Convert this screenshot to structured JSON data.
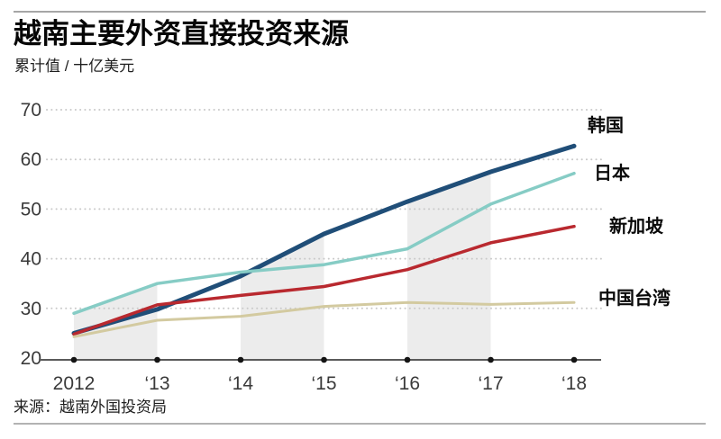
{
  "header": {
    "title": "越南主要外资直接投资来源",
    "subtitle": "累计值 / 十亿美元"
  },
  "footer": {
    "source": "来源：越南外国投资局"
  },
  "chart_data": {
    "type": "line",
    "title": "越南主要外资直接投资来源",
    "ylabel": "累计值 / 十亿美元",
    "categories": [
      "2012",
      "‘13",
      "‘14",
      "‘15",
      "‘16",
      "‘17",
      "‘18"
    ],
    "series": [
      {
        "id": "korea",
        "name": "韩国",
        "color": "#204e78",
        "line_width": 5,
        "values": [
          25.0,
          29.8,
          36.5,
          45.0,
          51.5,
          57.5,
          62.7
        ]
      },
      {
        "id": "japan",
        "name": "日本",
        "color": "#86ccc5",
        "line_width": 3.5,
        "values": [
          29.0,
          35.0,
          37.3,
          38.8,
          42.0,
          51.0,
          57.2
        ]
      },
      {
        "id": "singapore",
        "name": "新加坡",
        "color": "#b9292f",
        "line_width": 3.5,
        "values": [
          24.8,
          30.7,
          32.6,
          34.4,
          37.8,
          43.2,
          46.5
        ]
      },
      {
        "id": "taiwan",
        "name": "中国台湾",
        "color": "#d3caa0",
        "line_width": 3,
        "values": [
          24.3,
          27.6,
          28.4,
          30.4,
          31.2,
          30.8,
          31.2
        ]
      }
    ],
    "ylim": [
      20,
      70
    ],
    "yticks": [
      20,
      30,
      40,
      50,
      60,
      70
    ],
    "grid": "horizontal-dotted",
    "grid_color": "#c9c9c9",
    "axis_color": "#5a5a5a",
    "tick_dot_color": "#141414",
    "tick_label_color": "#3a3a3a",
    "highlight_band_color": "#ececec",
    "highlight_bands": [
      [
        0,
        1
      ],
      [
        2,
        3
      ],
      [
        4,
        5
      ]
    ],
    "legend_position": "right-of-line-ends"
  }
}
